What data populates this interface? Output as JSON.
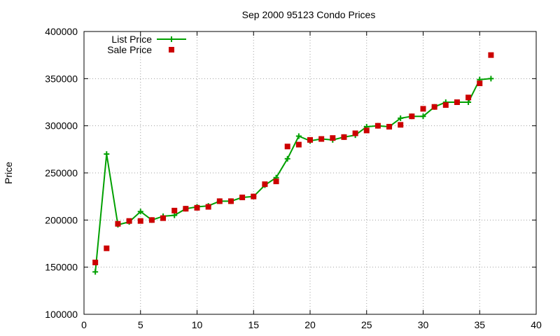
{
  "chart_data": {
    "type": "line",
    "title": "Sep 2000 95123 Condo Prices",
    "xlabel": "",
    "ylabel": "Price",
    "xlim": [
      0,
      40
    ],
    "ylim": [
      100000,
      400000
    ],
    "xticks": [
      0,
      5,
      10,
      15,
      20,
      25,
      30,
      35,
      40
    ],
    "yticks": [
      100000,
      150000,
      200000,
      250000,
      300000,
      350000,
      400000
    ],
    "grid": true,
    "legend_position": "top-left",
    "series": [
      {
        "name": "List Price",
        "style": "line-with-plus-markers",
        "color": "#00a000",
        "x": [
          1,
          2,
          3,
          4,
          5,
          6,
          7,
          8,
          9,
          10,
          11,
          12,
          13,
          14,
          15,
          16,
          17,
          18,
          19,
          20,
          21,
          22,
          23,
          24,
          25,
          26,
          27,
          28,
          29,
          30,
          31,
          32,
          33,
          34,
          35,
          36
        ],
        "y": [
          145000,
          270000,
          195000,
          198000,
          209000,
          200000,
          204000,
          205000,
          212000,
          214000,
          215000,
          220000,
          220000,
          224000,
          225000,
          237000,
          245000,
          265000,
          289000,
          284000,
          286000,
          285000,
          288000,
          290000,
          299000,
          300000,
          299000,
          308000,
          310000,
          310000,
          320000,
          325000,
          325000,
          325000,
          349000,
          350000
        ]
      },
      {
        "name": "Sale Price",
        "style": "square-markers",
        "color": "#cc0000",
        "x": [
          1,
          2,
          3,
          4,
          5,
          6,
          7,
          8,
          9,
          10,
          11,
          12,
          13,
          14,
          15,
          16,
          17,
          18,
          19,
          20,
          21,
          22,
          23,
          24,
          25,
          26,
          27,
          28,
          29,
          30,
          31,
          32,
          33,
          34,
          35,
          36
        ],
        "y": [
          155000,
          170000,
          196000,
          199000,
          199000,
          200000,
          202000,
          210000,
          212000,
          213000,
          214000,
          220000,
          220000,
          224000,
          225000,
          238000,
          241000,
          278000,
          280000,
          285000,
          286000,
          287000,
          288000,
          292000,
          295000,
          300000,
          299000,
          301000,
          310000,
          318000,
          320000,
          322000,
          325000,
          330000,
          345000,
          375000
        ]
      }
    ]
  }
}
